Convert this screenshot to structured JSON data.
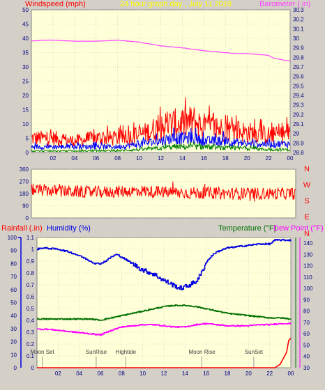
{
  "header": {
    "left_label": "Windspeed (mph)",
    "title": "24 hour graph day , July 11 2019",
    "right_label": "Barometer (.in)"
  },
  "colors": {
    "background": "#d4d0c8",
    "plot_bg": "#ffffd8",
    "grid": "#c8c8c8",
    "windspeed": "#ff0000",
    "avg_wind": "#0000ff",
    "wind_min": "#008000",
    "barometer": "#ff40ff",
    "direction": "#ff0000",
    "humidity": "#0000e0",
    "temperature": "#007000",
    "dewpoint": "#ff00ff",
    "rain": "#ff0000"
  },
  "chart_data": [
    {
      "type": "line",
      "name": "wind-barometer",
      "x_ticks": [
        "02",
        "04",
        "06",
        "08",
        "10",
        "12",
        "14",
        "16",
        "18",
        "20",
        "22",
        "00"
      ],
      "xlim": [
        0,
        24
      ],
      "left_axis": {
        "label": "Windspeed (mph)",
        "ylim": [
          0,
          50
        ],
        "ticks": [
          "0",
          "5",
          "10",
          "15",
          "20",
          "25",
          "30",
          "35",
          "40",
          "45",
          "50"
        ]
      },
      "right_axis": {
        "label": "Barometer (.in)",
        "ylim": [
          28.8,
          30.3
        ],
        "ticks": [
          "28.8",
          "28.9",
          "29",
          "29.1",
          "29.2",
          "29.3",
          "29.4",
          "29.5",
          "29.6",
          "29.7",
          "29.8",
          "29.9",
          "30",
          "30.1",
          "30.2",
          "30.3"
        ]
      },
      "series": [
        {
          "key": "gust",
          "color": "#ff0000",
          "x": [
            0,
            2,
            4,
            6,
            8,
            10,
            12,
            13,
            14,
            15,
            16,
            18,
            20,
            22,
            23,
            24
          ],
          "y": [
            5,
            5,
            4,
            5,
            5,
            6,
            9,
            10,
            10,
            11,
            9,
            8,
            7,
            6,
            6,
            7
          ]
        },
        {
          "key": "avg",
          "color": "#0000ff",
          "x": [
            0,
            2,
            4,
            6,
            8,
            10,
            12,
            13,
            14,
            15,
            16,
            18,
            20,
            22,
            23,
            24
          ],
          "y": [
            2,
            2,
            2,
            2,
            2,
            3,
            4,
            5,
            5,
            5,
            4,
            4,
            3,
            3,
            3,
            3
          ]
        },
        {
          "key": "min",
          "color": "#008000",
          "x": [
            0,
            2,
            4,
            6,
            8,
            10,
            12,
            13,
            14,
            15,
            16,
            18,
            20,
            22,
            23,
            24
          ],
          "y": [
            0.5,
            0.5,
            0.5,
            0.6,
            0.6,
            1,
            1.5,
            2,
            2,
            2,
            2,
            1.5,
            1.5,
            1,
            1,
            1
          ]
        },
        {
          "key": "baro",
          "color": "#ff40ff",
          "axis": "right",
          "x": [
            0,
            1,
            2,
            4,
            6,
            8,
            9,
            10,
            11,
            12,
            14,
            16,
            18,
            19,
            20,
            21,
            22,
            22.5,
            23,
            24
          ],
          "y": [
            29.97,
            29.98,
            29.98,
            29.97,
            29.97,
            29.98,
            29.97,
            29.96,
            29.94,
            29.92,
            29.9,
            29.87,
            29.85,
            29.84,
            29.84,
            29.83,
            29.82,
            29.79,
            29.78,
            29.76
          ]
        }
      ]
    },
    {
      "type": "scatter",
      "name": "wind-direction",
      "xlim": [
        0,
        24
      ],
      "ylim": [
        0,
        360
      ],
      "y_ticks": [
        "0",
        "90",
        "180",
        "270",
        "360"
      ],
      "compass_labels": [
        "N",
        "W",
        "S",
        "E",
        "N"
      ],
      "series": [
        {
          "key": "direction",
          "color": "#ff0000",
          "x": [
            0,
            2,
            4,
            6,
            8,
            10,
            12,
            14,
            16,
            18,
            20,
            22,
            24
          ],
          "y": [
            210,
            200,
            195,
            190,
            195,
            200,
            190,
            185,
            185,
            180,
            180,
            180,
            180
          ]
        }
      ]
    },
    {
      "type": "line",
      "name": "humidity-temperature",
      "x_ticks": [
        "02",
        "04",
        "06",
        "08",
        "10",
        "12",
        "14",
        "16",
        "18",
        "20",
        "22",
        "00"
      ],
      "xlim": [
        0,
        24
      ],
      "axis_labels": {
        "rainfall": "Rainfall (.in)",
        "humidity": "Humidity (%)",
        "temperature": "Temperature (°F)",
        "dewpoint": "Dew Point (°F)"
      },
      "rainfall_axis": {
        "ylim": [
          0,
          1.1
        ],
        "ticks": [
          "0",
          "0.1",
          "0.2",
          "0.3",
          "0.4",
          "0.5",
          "0.6",
          "0.7",
          "0.8",
          "0.9",
          "1",
          "1.1"
        ]
      },
      "humidity_axis": {
        "ylim": [
          0,
          100
        ],
        "ticks": [
          "0",
          "10",
          "20",
          "30",
          "40",
          "50",
          "60",
          "70",
          "80",
          "90",
          "100"
        ]
      },
      "temperature_axis": {
        "ylim": [
          30,
          145
        ],
        "ticks": [
          "30",
          "40",
          "50",
          "60",
          "70",
          "80",
          "90",
          "100",
          "110",
          "120",
          "130",
          "140"
        ]
      },
      "series": [
        {
          "key": "humidity",
          "color": "#0000e0",
          "axis": "humidity",
          "x": [
            0,
            0.5,
            2,
            3,
            4,
            5,
            5.5,
            6,
            6.5,
            7,
            7.5,
            8,
            9,
            10,
            11,
            12,
            13,
            13.5,
            14,
            14.5,
            15,
            15.5,
            16,
            16.5,
            17,
            18,
            19,
            20,
            21,
            22,
            22.5,
            24
          ],
          "y": [
            91,
            92,
            91,
            89,
            86,
            82,
            80,
            80,
            82,
            85,
            87,
            85,
            80,
            75,
            72,
            67,
            63,
            61,
            62,
            64,
            66,
            72,
            81,
            86,
            89,
            92,
            93,
            94,
            95,
            95,
            98,
            98
          ]
        },
        {
          "key": "temperature",
          "color": "#007000",
          "axis": "temperature",
          "x": [
            0,
            1,
            2,
            3,
            4,
            5,
            6,
            7,
            8,
            9,
            10,
            11,
            12,
            13,
            14,
            15,
            16,
            17,
            18,
            19,
            20,
            21,
            22,
            23,
            24
          ],
          "y": [
            73,
            73,
            73,
            73,
            73,
            73,
            72,
            74,
            76,
            78,
            80,
            82,
            84,
            85,
            85,
            84,
            82,
            80,
            78,
            77,
            76,
            75,
            74,
            74,
            73
          ]
        },
        {
          "key": "dewpoint",
          "color": "#ff00ff",
          "axis": "temperature",
          "x": [
            0,
            1,
            2,
            3,
            4,
            5,
            6,
            7,
            8,
            9,
            10,
            11,
            12,
            13,
            14,
            15,
            16,
            17,
            18,
            19,
            20,
            21,
            22,
            23,
            24
          ],
          "y": [
            64,
            64,
            63,
            62,
            61,
            60,
            59,
            63,
            66,
            67,
            68,
            68,
            67,
            66,
            66,
            68,
            69,
            68,
            67,
            67,
            67,
            68,
            68,
            69,
            69
          ]
        },
        {
          "key": "rain",
          "color": "#ff0000",
          "axis": "rainfall",
          "x": [
            0,
            22.5,
            23,
            23.3,
            23.6,
            23.8,
            24
          ],
          "y": [
            0,
            0,
            0.03,
            0.08,
            0.13,
            0.23,
            0.25
          ]
        }
      ],
      "events": [
        {
          "label": "Moon Set",
          "x": 0.5
        },
        {
          "label": "SunRise",
          "x": 5.6
        },
        {
          "label": "Hightide",
          "x": 8.4
        },
        {
          "label": "Moon Rise",
          "x": 15.6
        },
        {
          "label": "SunSet",
          "x": 20.5
        }
      ]
    }
  ]
}
